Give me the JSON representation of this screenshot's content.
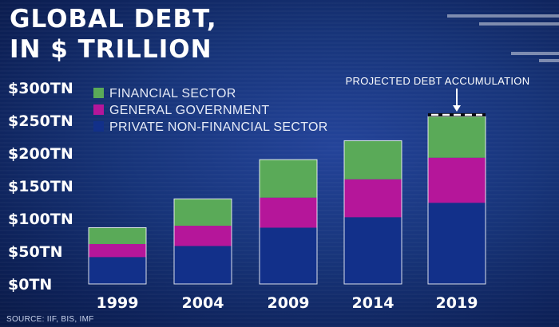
{
  "title_lines": [
    "GLOBAL DEBT,",
    "IN $ TRILLION"
  ],
  "source": "SOURCE: IIF, BIS, IMF",
  "annotation": "PROJECTED DEBT ACCUMULATION",
  "colors": {
    "financial": "#5aaa58",
    "government": "#b5169a",
    "private": "#12308a",
    "background": "#173479"
  },
  "chart_data": {
    "type": "bar",
    "stacked": true,
    "title": "GLOBAL DEBT, IN $ TRILLION",
    "xlabel": "",
    "ylabel": "",
    "categories": [
      "1999",
      "2004",
      "2009",
      "2014",
      "2019"
    ],
    "series": [
      {
        "name": "PRIVATE NON-FINANCIAL SECTOR",
        "values": [
          41,
          58,
          86,
          102,
          124
        ]
      },
      {
        "name": "GENERAL GOVERNMENT",
        "values": [
          20,
          31,
          46,
          58,
          69
        ]
      },
      {
        "name": "FINANCIAL SECTOR",
        "values": [
          25,
          41,
          58,
          59,
          63
        ]
      }
    ],
    "projected_extra": [
      0,
      0,
      0,
      0,
      5
    ],
    "yticks": [
      0,
      50,
      100,
      150,
      200,
      250,
      300
    ],
    "ytick_labels": [
      "$0TN",
      "$50TN",
      "$100TN",
      "$150TN",
      "$200TN",
      "$250TN",
      "$300TN"
    ],
    "ylim": [
      0,
      300
    ],
    "grid": false,
    "legend_position": "top-left",
    "legend_order": [
      "FINANCIAL SECTOR",
      "GENERAL GOVERNMENT",
      "PRIVATE NON-FINANCIAL SECTOR"
    ]
  }
}
